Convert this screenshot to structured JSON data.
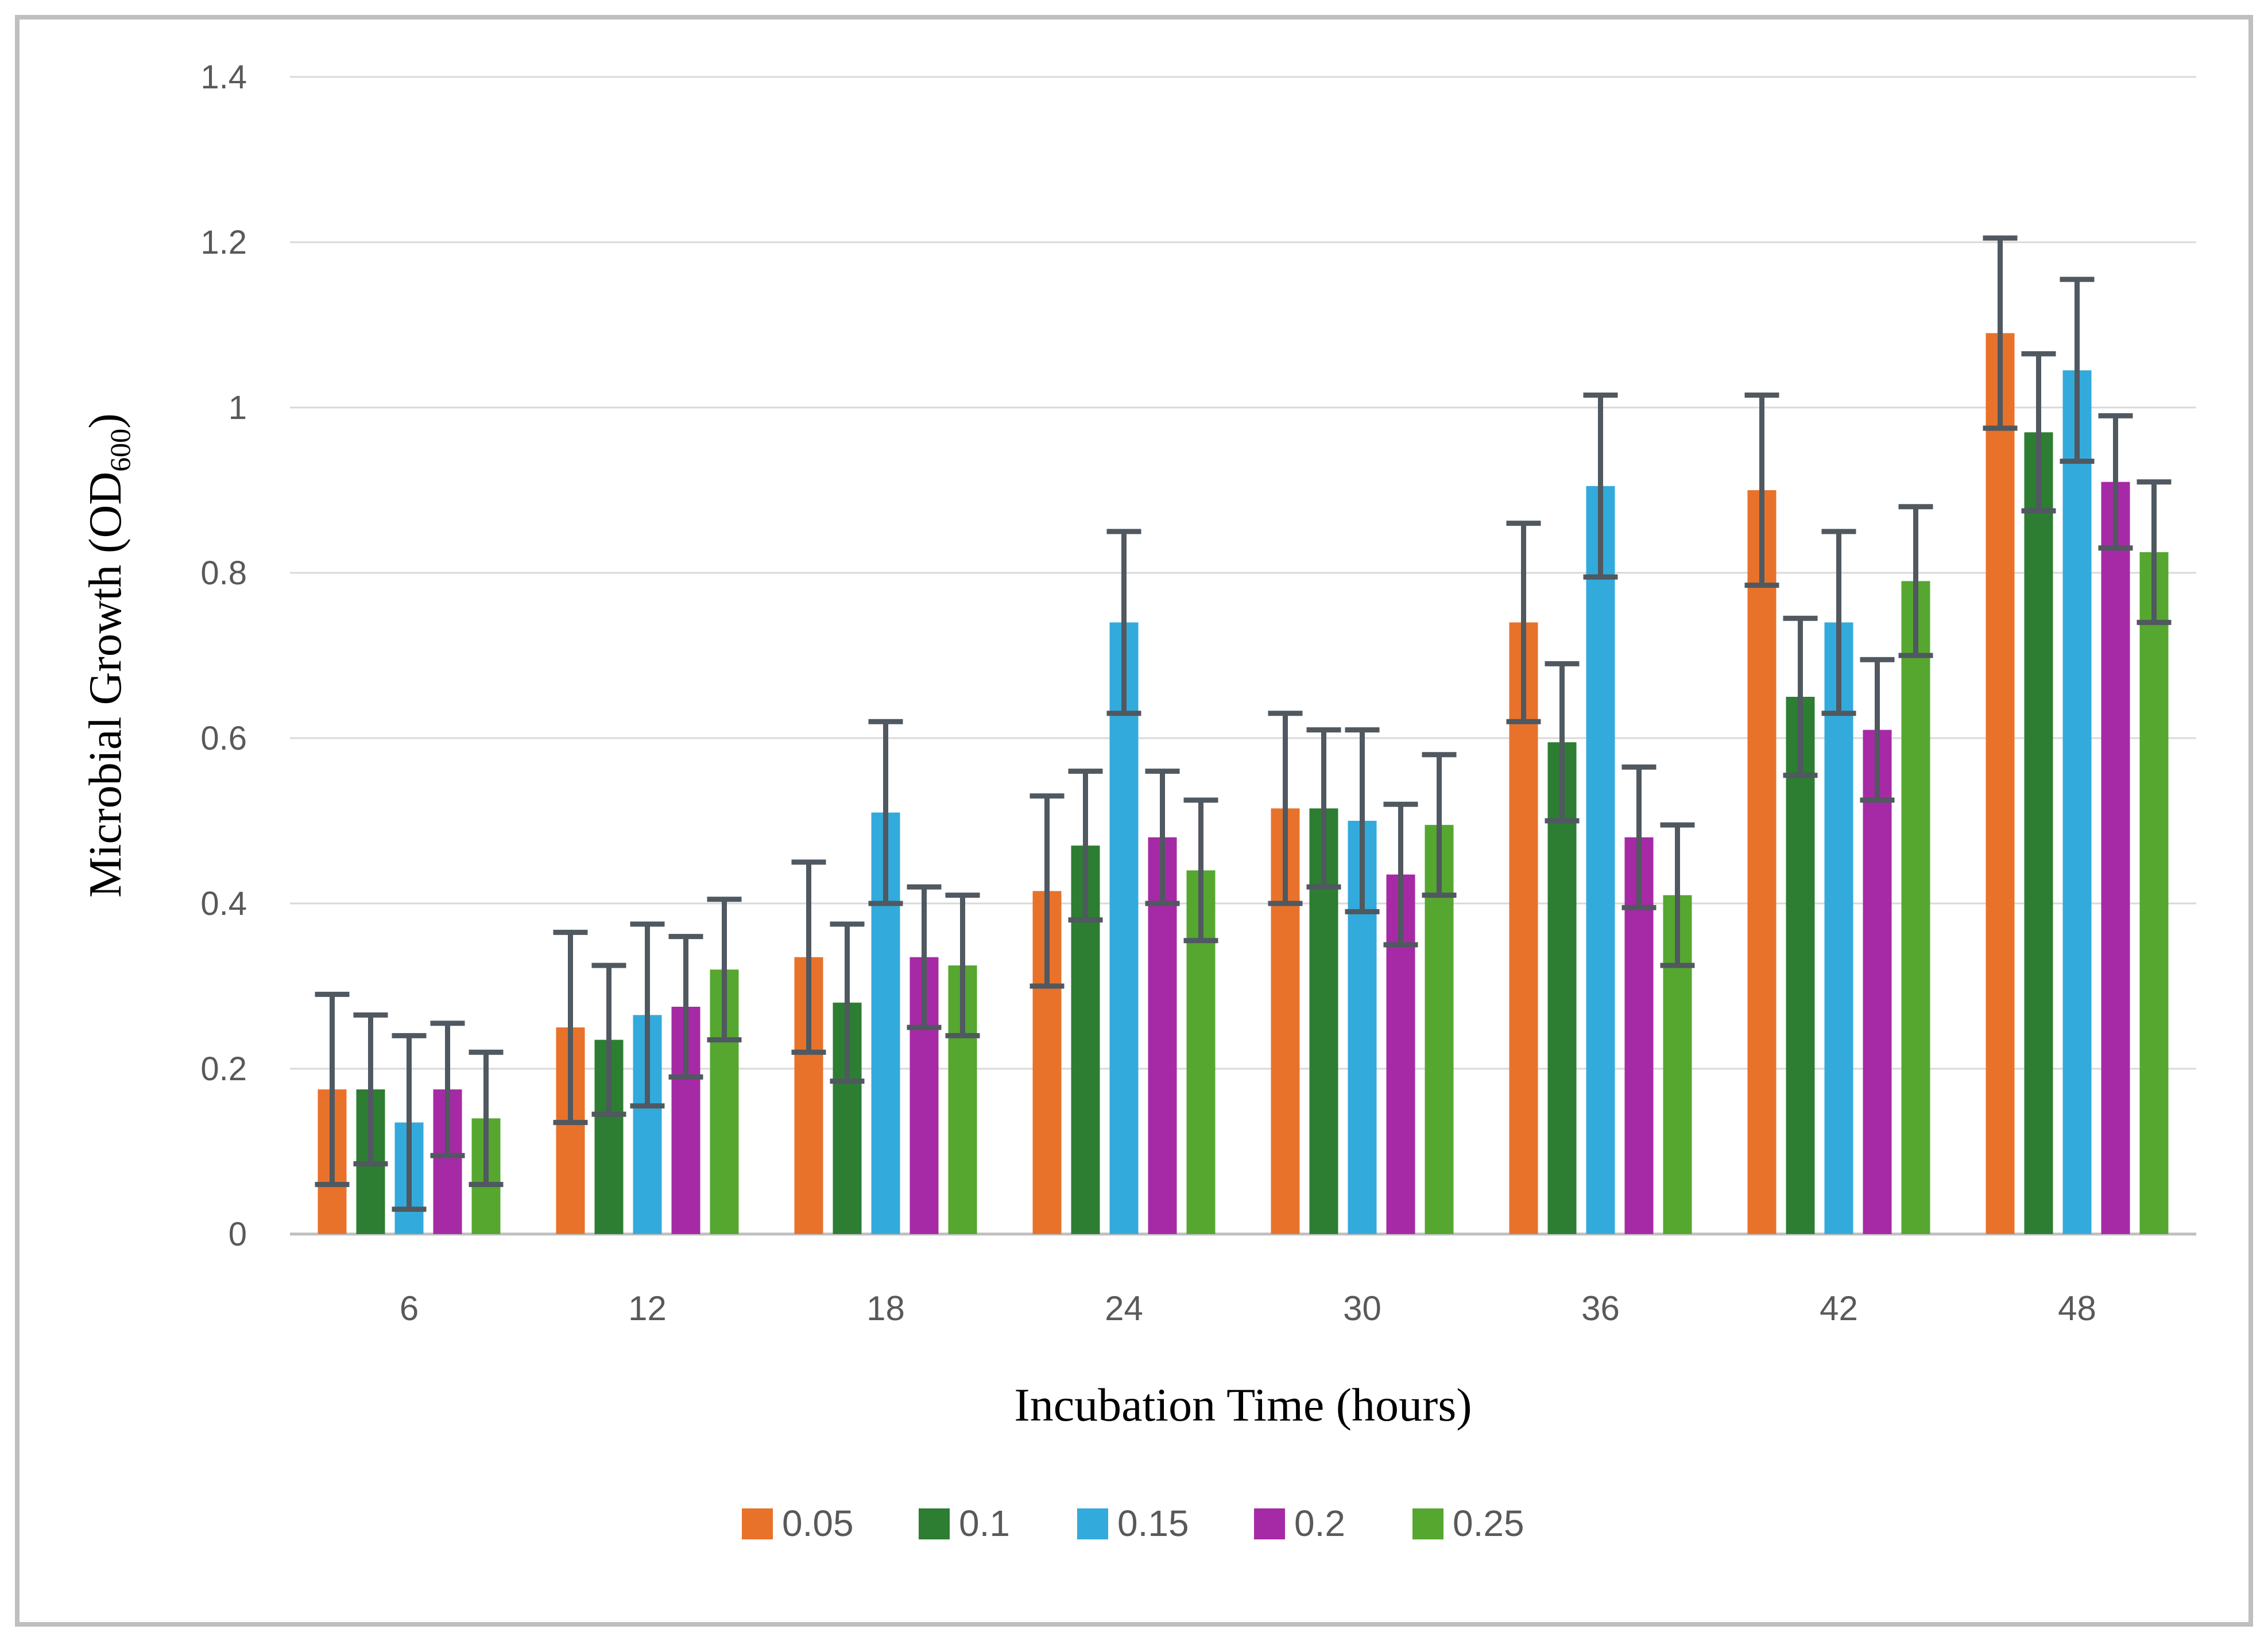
{
  "figure": {
    "background": "#ffffff",
    "border_color": "#bfbfbf"
  },
  "style": {
    "grid_color": "#d9d9d9",
    "axis_color": "#bfbfbf",
    "tick_label_color": "#595959",
    "title_color": "#000000",
    "error_bar_color": "#505860",
    "legend_text_color": "#595959"
  },
  "chart_data": {
    "type": "bar",
    "title": "",
    "xlabel": "Incubation Time (hours)",
    "ylabel": "Microbial Growth (OD600)",
    "ylabel_parts": {
      "prefix": "Microbial Growth (OD",
      "subscript": "600",
      "suffix": ")"
    },
    "categories": [
      "6",
      "12",
      "18",
      "24",
      "30",
      "36",
      "42",
      "48"
    ],
    "yticks": [
      "0",
      "0.2",
      "0.4",
      "0.6",
      "0.8",
      "1",
      "1.2",
      "1.4"
    ],
    "ylim": [
      0,
      1.4
    ],
    "ytick_step": 0.2,
    "grid": true,
    "legend_position": "bottom",
    "error_bars": true,
    "series": [
      {
        "name": "0.05",
        "color": "#e8722a",
        "values": [
          0.175,
          0.25,
          0.335,
          0.415,
          0.515,
          0.74,
          0.9,
          1.09
        ],
        "errors": [
          0.115,
          0.115,
          0.115,
          0.115,
          0.115,
          0.12,
          0.115,
          0.115
        ]
      },
      {
        "name": "0.1",
        "color": "#2d7d32",
        "values": [
          0.175,
          0.235,
          0.28,
          0.47,
          0.515,
          0.595,
          0.65,
          0.97
        ],
        "errors": [
          0.09,
          0.09,
          0.095,
          0.09,
          0.095,
          0.095,
          0.095,
          0.095
        ]
      },
      {
        "name": "0.15",
        "color": "#33aadc",
        "values": [
          0.135,
          0.265,
          0.51,
          0.74,
          0.5,
          0.905,
          0.74,
          1.045
        ],
        "errors": [
          0.105,
          0.11,
          0.11,
          0.11,
          0.11,
          0.11,
          0.11,
          0.11
        ]
      },
      {
        "name": "0.2",
        "color": "#a62aa5",
        "values": [
          0.175,
          0.275,
          0.335,
          0.48,
          0.435,
          0.48,
          0.61,
          0.91
        ],
        "errors": [
          0.08,
          0.085,
          0.085,
          0.08,
          0.085,
          0.085,
          0.085,
          0.08
        ]
      },
      {
        "name": "0.25",
        "color": "#55a72f",
        "values": [
          0.14,
          0.32,
          0.325,
          0.44,
          0.495,
          0.41,
          0.79,
          0.825
        ],
        "errors": [
          0.08,
          0.085,
          0.085,
          0.085,
          0.085,
          0.085,
          0.09,
          0.085
        ]
      }
    ]
  }
}
